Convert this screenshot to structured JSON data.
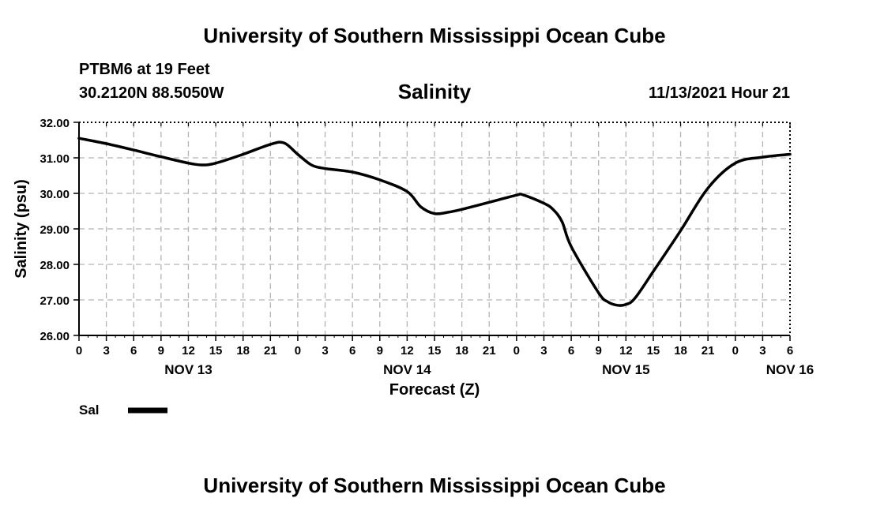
{
  "header": {
    "title": "University of Southern Mississippi Ocean Cube",
    "station": "PTBM6 at 19 Feet",
    "coordinates": "30.2120N  88.5050W",
    "run_time": "11/13/2021 Hour 21",
    "footer_title": "University of Southern Mississippi Ocean Cube"
  },
  "chart_data": {
    "type": "line",
    "title": "Salinity",
    "xlabel": "Forecast (Z)",
    "ylabel": "Salinity (psu)",
    "ylim": [
      26,
      32
    ],
    "yticks": [
      "26.00",
      "27.00",
      "28.00",
      "29.00",
      "30.00",
      "31.00",
      "32.00"
    ],
    "xlim_hours": [
      0,
      78
    ],
    "x_tick_hours": [
      0,
      3,
      6,
      9,
      12,
      15,
      18,
      21,
      24,
      27,
      30,
      33,
      36,
      39,
      42,
      45,
      48,
      51,
      54,
      57,
      60,
      63,
      66,
      69,
      72,
      75,
      78
    ],
    "x_tick_labels": [
      "0",
      "3",
      "6",
      "9",
      "12",
      "15",
      "18",
      "21",
      "0",
      "3",
      "6",
      "9",
      "12",
      "15",
      "18",
      "21",
      "0",
      "3",
      "6",
      "9",
      "12",
      "15",
      "18",
      "21",
      "0",
      "3",
      "6"
    ],
    "day_labels": [
      {
        "label": "NOV 13",
        "hour": 12
      },
      {
        "label": "NOV 14",
        "hour": 36
      },
      {
        "label": "NOV 15",
        "hour": 60
      },
      {
        "label": "NOV 16",
        "hour": 78
      }
    ],
    "grid": true,
    "series": [
      {
        "name": "Sal",
        "x_hours": [
          0,
          3,
          6,
          9,
          12,
          13.5,
          15,
          18,
          21,
          22.5,
          24,
          25.5,
          27,
          30,
          33,
          36,
          37.5,
          39,
          40.5,
          42,
          45,
          48,
          48.7,
          51,
          52,
          53,
          54,
          57,
          58,
          59,
          60,
          61,
          63,
          66,
          69,
          72,
          75,
          78
        ],
        "values": [
          31.55,
          31.4,
          31.22,
          31.03,
          30.85,
          30.8,
          30.85,
          31.1,
          31.38,
          31.42,
          31.1,
          30.8,
          30.7,
          30.6,
          30.38,
          30.05,
          29.62,
          29.43,
          29.47,
          29.55,
          29.75,
          29.95,
          29.96,
          29.72,
          29.55,
          29.2,
          28.5,
          27.2,
          26.95,
          26.85,
          26.87,
          27.05,
          27.8,
          28.95,
          30.15,
          30.85,
          31.02,
          31.1
        ]
      }
    ]
  },
  "legend": {
    "label": "Sal"
  }
}
